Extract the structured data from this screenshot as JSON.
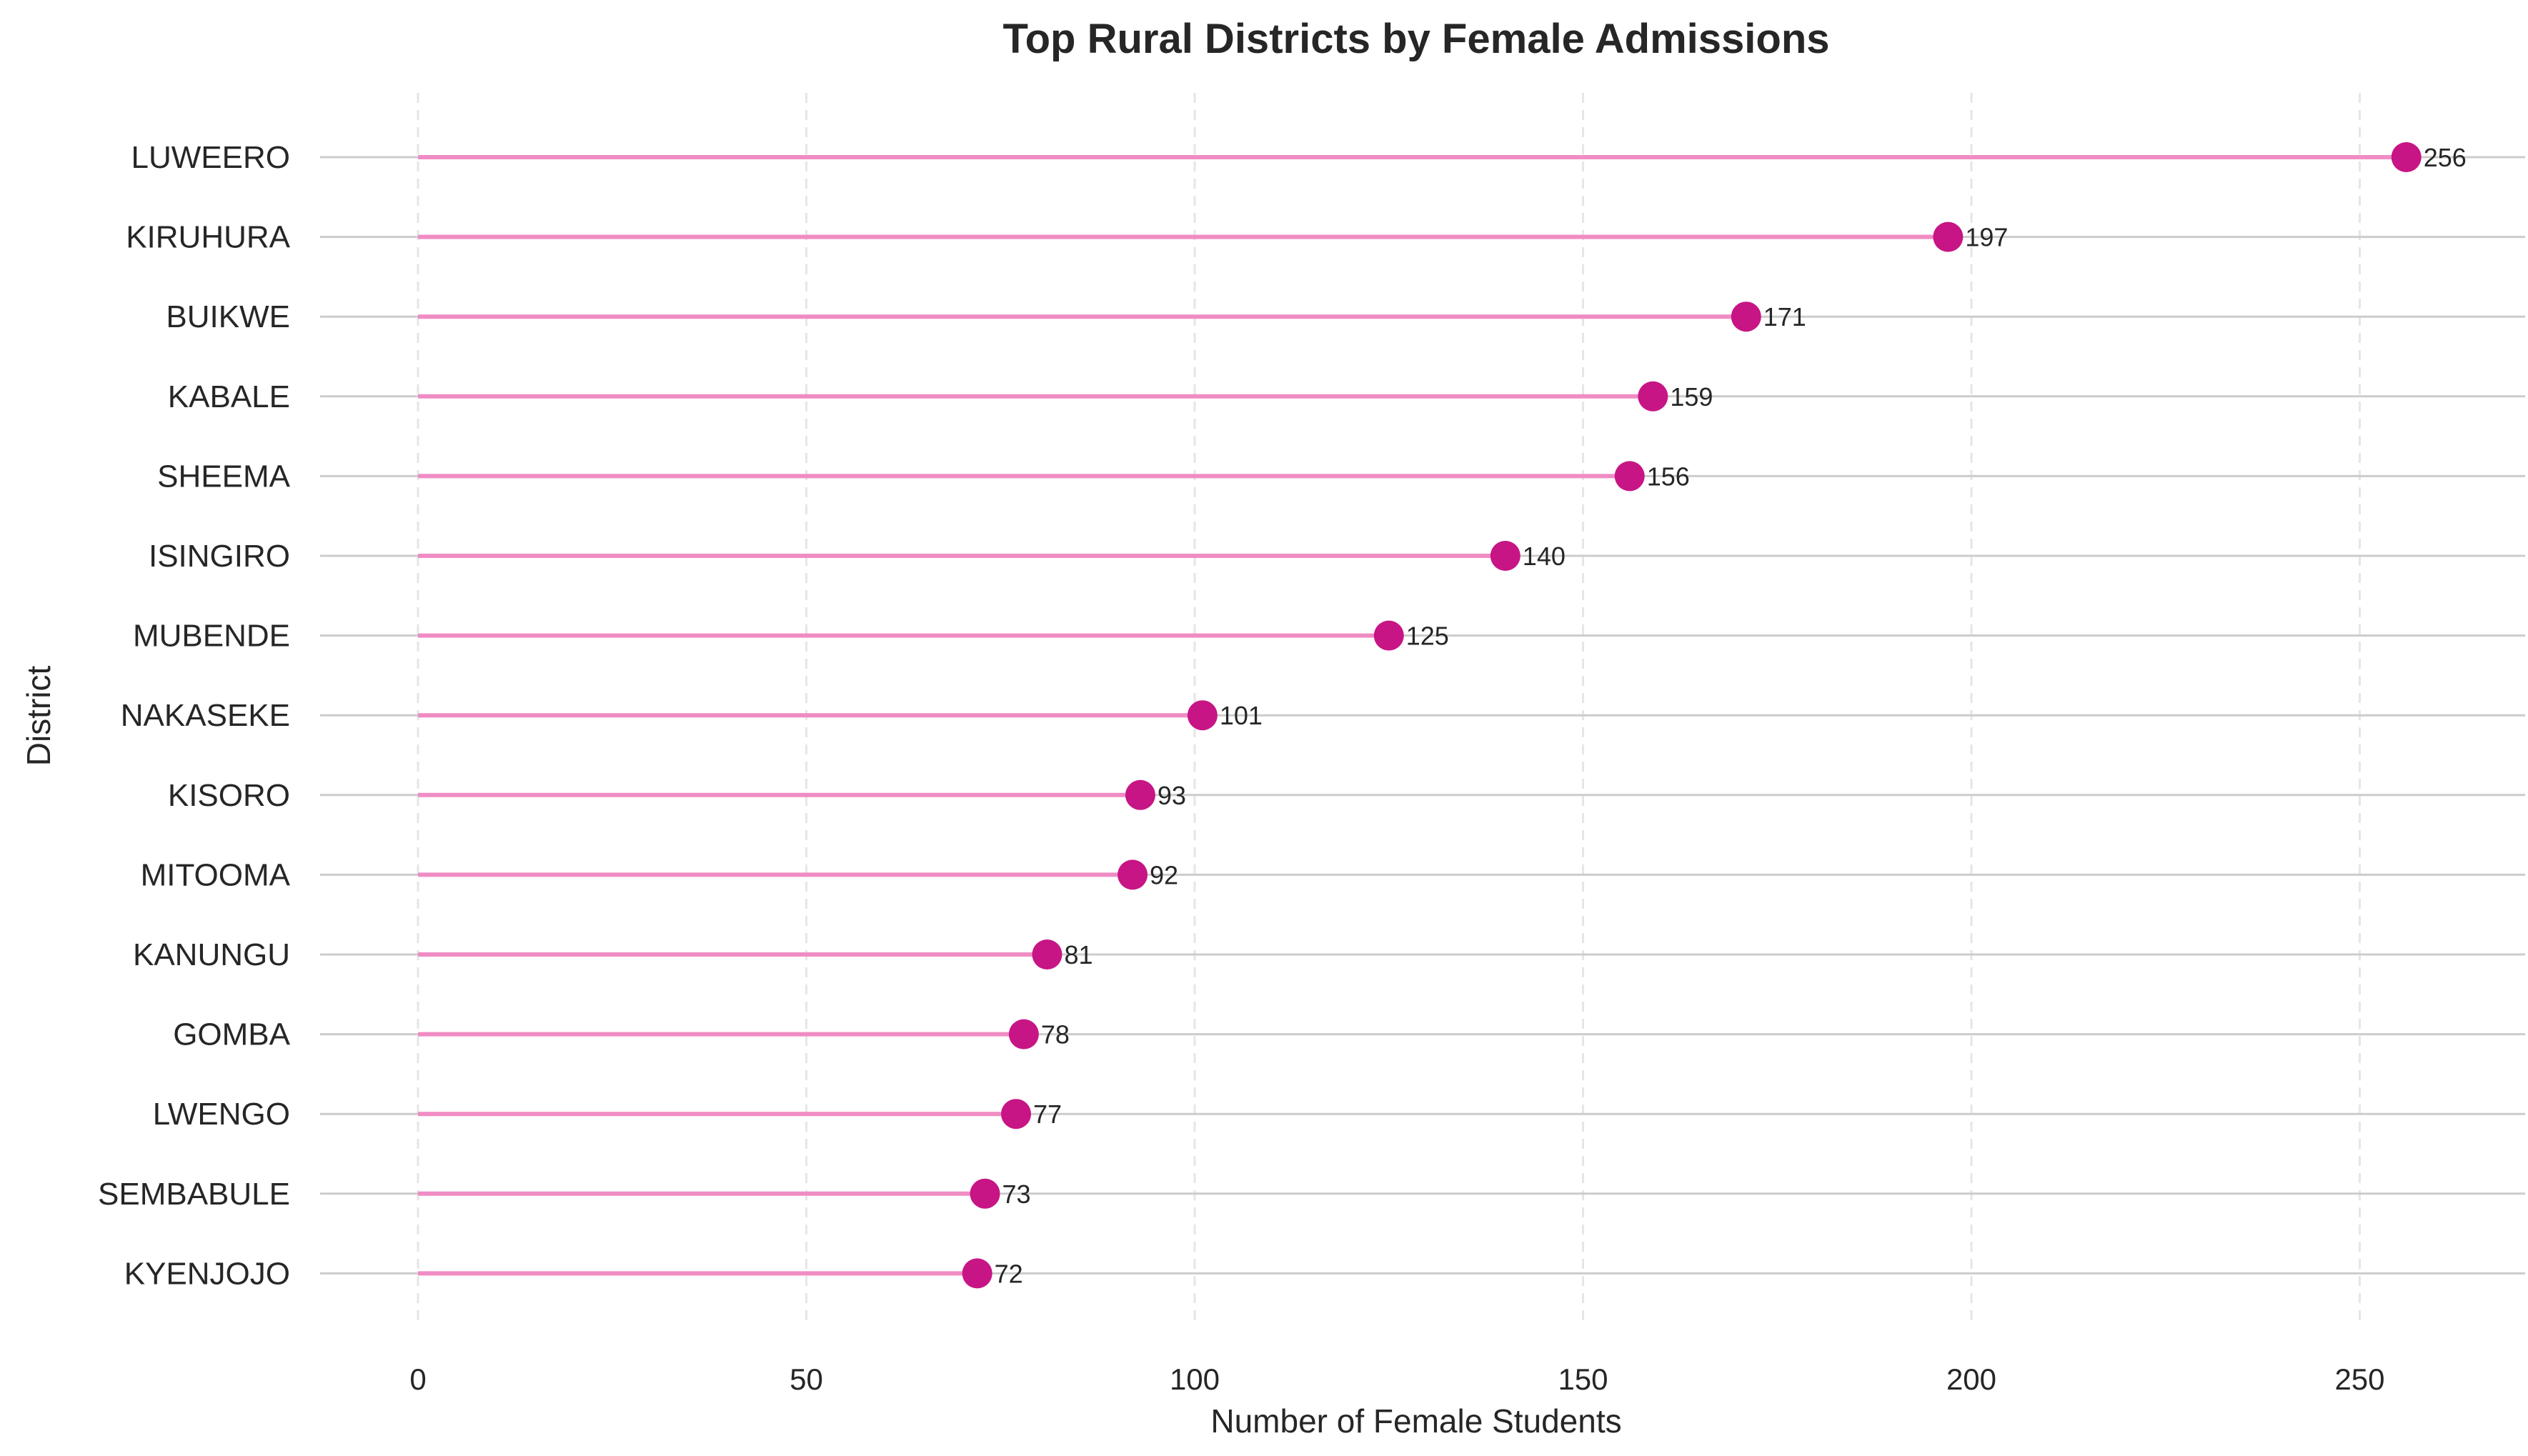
{
  "chart_data": {
    "type": "lollipop",
    "title": "Top Rural Districts by Female Admissions",
    "xlabel": "Number of Female Students",
    "ylabel": "District",
    "xlim": [
      -13,
      270
    ],
    "xticks": [
      0,
      50,
      100,
      150,
      200,
      250
    ],
    "grid": {
      "x": "dashed",
      "y": "solid"
    },
    "categories": [
      "LUWEERO",
      "KIRUHURA",
      "BUIKWE",
      "KABALE",
      "SHEEMA",
      "ISINGIRO",
      "MUBENDE",
      "NAKASEKE",
      "KISORO",
      "MITOOMA",
      "KANUNGU",
      "GOMBA",
      "LWENGO",
      "SEMBABULE",
      "KYENJOJO"
    ],
    "values": [
      256,
      197,
      171,
      159,
      156,
      140,
      125,
      101,
      93,
      92,
      81,
      78,
      77,
      73,
      72
    ],
    "colors": {
      "stem": "#f08cc4",
      "marker": "#c71585",
      "gridline": "#cccccc",
      "xgrid": "#e6e6e6",
      "text": "#262626"
    }
  }
}
